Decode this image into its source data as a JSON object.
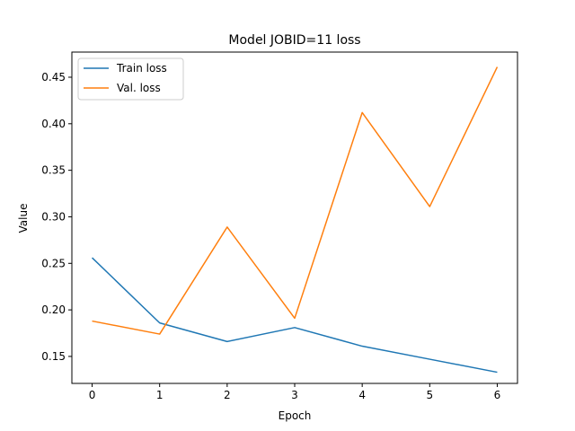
{
  "chart_data": {
    "type": "line",
    "title": "Model JOBID=11 loss",
    "xlabel": "Epoch",
    "ylabel": "Value",
    "x": [
      0,
      1,
      2,
      3,
      4,
      5,
      6
    ],
    "xlim": [
      -0.3,
      6.3
    ],
    "ylim": [
      0.121,
      0.477
    ],
    "xticks": [
      "0",
      "1",
      "2",
      "3",
      "4",
      "5",
      "6"
    ],
    "yticks": [
      "0.15",
      "0.20",
      "0.25",
      "0.30",
      "0.35",
      "0.40",
      "0.45"
    ],
    "grid": false,
    "legend_position": "top-left",
    "series": [
      {
        "name": "Train loss",
        "color": "#1f77b4",
        "values": [
          0.256,
          0.186,
          0.166,
          0.181,
          0.161,
          0.147,
          0.133
        ]
      },
      {
        "name": "Val. loss",
        "color": "#ff7f0e",
        "values": [
          0.188,
          0.174,
          0.289,
          0.191,
          0.412,
          0.311,
          0.461
        ]
      }
    ]
  }
}
